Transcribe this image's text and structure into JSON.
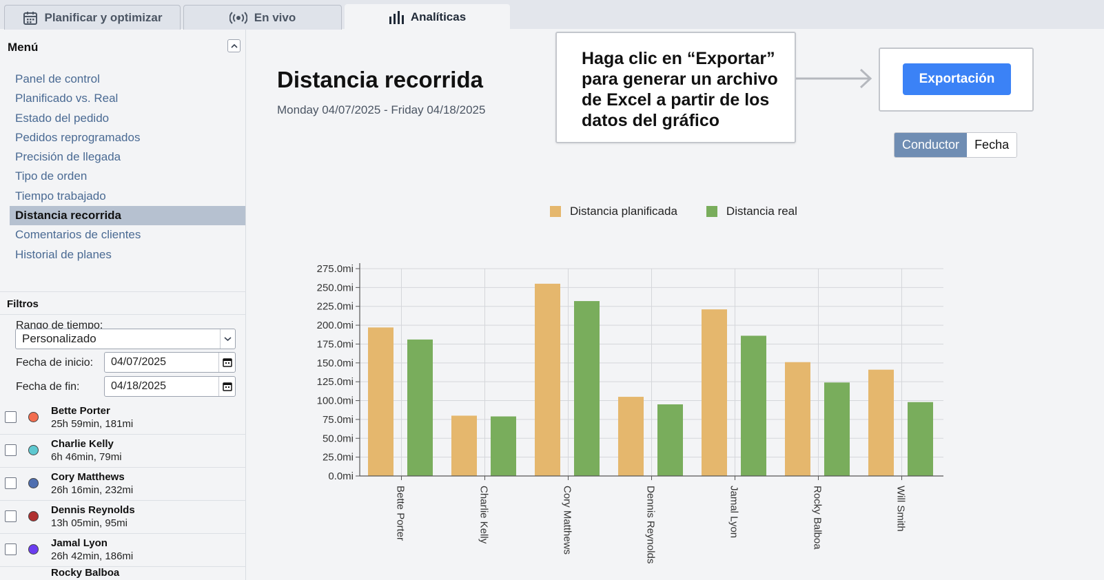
{
  "tabs": [
    {
      "label": "Planificar y optimizar",
      "icon": "calendar-icon"
    },
    {
      "label": "En vivo",
      "icon": "broadcast-icon"
    },
    {
      "label": "Analíticas",
      "icon": "bar-chart-icon"
    }
  ],
  "sidebar": {
    "menu_title": "Menú",
    "items": [
      {
        "label": "Panel de control"
      },
      {
        "label": "Planificado vs. Real"
      },
      {
        "label": "Estado del pedido"
      },
      {
        "label": "Pedidos reprogramados"
      },
      {
        "label": "Precisión de llegada"
      },
      {
        "label": "Tipo de orden"
      },
      {
        "label": "Tiempo trabajado"
      },
      {
        "label": "Distancia recorrida"
      },
      {
        "label": "Comentarios de clientes"
      },
      {
        "label": "Historial de planes"
      }
    ],
    "active_item": "Distancia recorrida",
    "filters": {
      "title": "Filtros",
      "time_range_label": "Rango de tiempo:",
      "time_range_value": "Personalizado",
      "start_label": "Fecha de inicio:",
      "start_value": "04/07/2025",
      "end_label": "Fecha de fin:",
      "end_value": "04/18/2025"
    },
    "drivers": [
      {
        "name": "Bette Porter",
        "meta": "25h 59min, 181mi",
        "color": "#f26d4f"
      },
      {
        "name": "Charlie Kelly",
        "meta": "6h 46min, 79mi",
        "color": "#5ec8d0"
      },
      {
        "name": "Cory Matthews",
        "meta": "26h 16min, 232mi",
        "color": "#4f6fb0"
      },
      {
        "name": "Dennis Reynolds",
        "meta": "13h 05min, 95mi",
        "color": "#b03030"
      },
      {
        "name": "Jamal Lyon",
        "meta": "26h 42min, 186mi",
        "color": "#6b3df0"
      },
      {
        "name": "Rocky Balboa",
        "meta": "",
        "color": "#888888"
      }
    ]
  },
  "main": {
    "title": "Distancia recorrida",
    "date_range": "Monday 04/07/2025 - Friday 04/18/2025",
    "callout": "Haga clic en “Exportar” para generar un archivo de Excel a partir de los datos del gráfico",
    "export_label": "Exportación",
    "group_by": [
      {
        "label": "Conductor"
      },
      {
        "label": "Fecha"
      }
    ],
    "group_by_selected": "Conductor"
  },
  "chart_data": {
    "type": "bar",
    "categories": [
      "Bette Porter",
      "Charlie Kelly",
      "Cory Matthews",
      "Dennis Reynolds",
      "Jamal Lyon",
      "Rocky Balboa",
      "Will Smith"
    ],
    "series": [
      {
        "name": "Distancia planificada",
        "color": "#e5b76d",
        "values": [
          197,
          80,
          255,
          105,
          221,
          151,
          141
        ]
      },
      {
        "name": "Distancia real",
        "color": "#79ad5c",
        "values": [
          181,
          79,
          232,
          95,
          186,
          124,
          98
        ]
      }
    ],
    "y_ticks": [
      "0.0mi",
      "25.0mi",
      "50.0mi",
      "75.0mi",
      "100.0mi",
      "125.0mi",
      "150.0mi",
      "175.0mi",
      "200.0mi",
      "225.0mi",
      "250.0mi",
      "275.0mi"
    ],
    "ylim": [
      0,
      275
    ],
    "y_unit": "mi",
    "grid": true,
    "legend_position": "top"
  }
}
